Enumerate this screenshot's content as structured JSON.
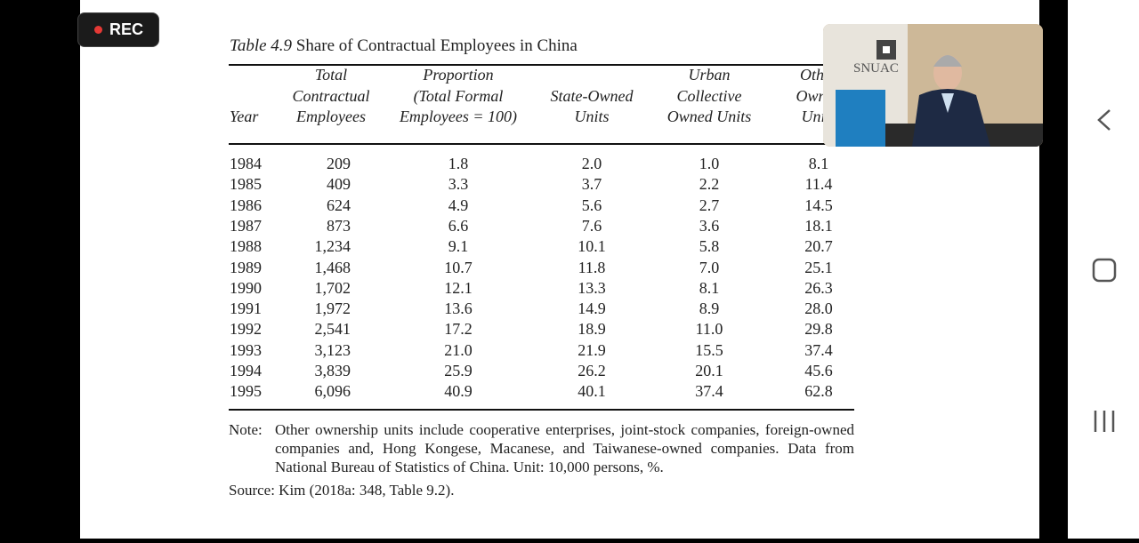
{
  "rec_label": "REC",
  "table": {
    "number": "Table 4.9",
    "title": "Share of Contractual Employees in China",
    "header": [
      [
        "Year"
      ],
      [
        "Total",
        "Contractual",
        "Employees"
      ],
      [
        "Proportion",
        "(Total Formal",
        "Employees = 100)"
      ],
      [
        "State-Owned",
        "Units"
      ],
      [
        "Urban",
        "Collective",
        "Owned Units"
      ],
      [
        "Other",
        "Owned",
        "Units"
      ]
    ],
    "rows": [
      [
        "1984",
        "209",
        "1.8",
        "2.0",
        "1.0",
        "8.1"
      ],
      [
        "1985",
        "409",
        "3.3",
        "3.7",
        "2.2",
        "11.4"
      ],
      [
        "1986",
        "624",
        "4.9",
        "5.6",
        "2.7",
        "14.5"
      ],
      [
        "1987",
        "873",
        "6.6",
        "7.6",
        "3.6",
        "18.1"
      ],
      [
        "1988",
        "1,234",
        "9.1",
        "10.1",
        "5.8",
        "20.7"
      ],
      [
        "1989",
        "1,468",
        "10.7",
        "11.8",
        "7.0",
        "25.1"
      ],
      [
        "1990",
        "1,702",
        "12.1",
        "13.3",
        "8.1",
        "26.3"
      ],
      [
        "1991",
        "1,972",
        "13.6",
        "14.9",
        "8.9",
        "28.0"
      ],
      [
        "1992",
        "2,541",
        "17.2",
        "18.9",
        "11.0",
        "29.8"
      ],
      [
        "1993",
        "3,123",
        "21.0",
        "21.9",
        "15.5",
        "37.4"
      ],
      [
        "1994",
        "3,839",
        "25.9",
        "26.2",
        "20.1",
        "45.6"
      ],
      [
        "1995",
        "6,096",
        "40.9",
        "40.1",
        "37.4",
        "62.8"
      ]
    ],
    "note_label": "Note:",
    "note": "Other ownership units include cooperative enterprises, joint-stock companies, foreign-owned companies and, Hong Kongese, Macanese, and Taiwanese-owned companies. Data from National Bureau of Statistics of China. Unit: 10,000 persons, %.",
    "source": "Source: Kim (2018a: 348, Table 9.2)."
  },
  "video_logo": "SNUAC"
}
